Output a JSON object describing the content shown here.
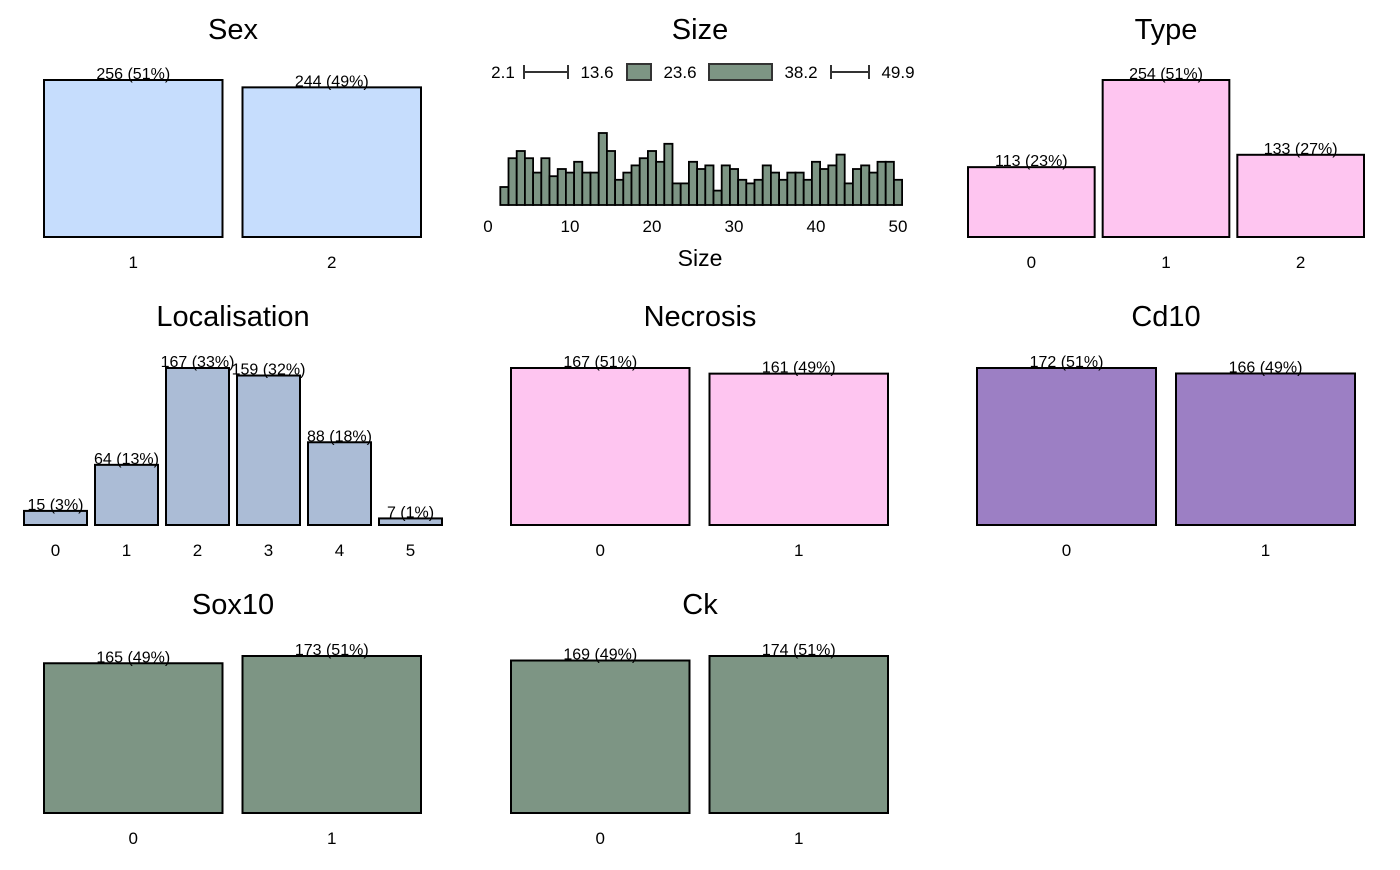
{
  "chart_data": [
    {
      "type": "bar",
      "title": "Sex",
      "categories": [
        "1",
        "2"
      ],
      "values": [
        256,
        244
      ],
      "labels": [
        "256 (51%)",
        "244 (49%)"
      ],
      "color": "#c6ddfd"
    },
    {
      "type": "histogram",
      "title": "Size",
      "xlabel": "Size",
      "xlim": [
        0,
        50
      ],
      "xticks": [
        "0",
        "10",
        "20",
        "30",
        "40",
        "50"
      ],
      "bin_start": 1.5,
      "bin_width": 1,
      "counts": [
        5,
        13,
        15,
        13,
        9,
        13,
        8,
        10,
        9,
        12,
        9,
        9,
        20,
        15,
        7,
        9,
        11,
        13,
        15,
        12,
        17,
        6,
        6,
        12,
        10,
        11,
        4,
        11,
        10,
        7,
        6,
        7,
        11,
        9,
        7,
        9,
        9,
        7,
        12,
        10,
        11,
        14,
        6,
        10,
        11,
        9,
        12,
        12,
        7
      ],
      "summary": {
        "min": "2.1",
        "q1": "13.6",
        "median": "23.6",
        "q3": "38.2",
        "max": "49.9"
      },
      "color": "#7d9584"
    },
    {
      "type": "bar",
      "title": "Type",
      "categories": [
        "0",
        "1",
        "2"
      ],
      "values": [
        113,
        254,
        133
      ],
      "labels": [
        "113 (23%)",
        "254 (51%)",
        "133 (27%)"
      ],
      "color": "#fec5f0"
    },
    {
      "type": "bar",
      "title": "Localisation",
      "categories": [
        "0",
        "1",
        "2",
        "3",
        "4",
        "5"
      ],
      "values": [
        15,
        64,
        167,
        159,
        88,
        7
      ],
      "labels": [
        "15 (3%)",
        "64 (13%)",
        "167 (33%)",
        "159 (32%)",
        "88 (18%)",
        "7 (1%)"
      ],
      "color": "#abbcd6"
    },
    {
      "type": "bar",
      "title": "Necrosis",
      "categories": [
        "0",
        "1"
      ],
      "values": [
        167,
        161
      ],
      "labels": [
        "167 (51%)",
        "161 (49%)"
      ],
      "color": "#fec5f0"
    },
    {
      "type": "bar",
      "title": "Cd10",
      "categories": [
        "0",
        "1"
      ],
      "values": [
        172,
        166
      ],
      "labels": [
        "172 (51%)",
        "166 (49%)"
      ],
      "color": "#9c7fc4"
    },
    {
      "type": "bar",
      "title": "Sox10",
      "categories": [
        "0",
        "1"
      ],
      "values": [
        165,
        173
      ],
      "labels": [
        "165 (49%)",
        "173 (51%)"
      ],
      "color": "#7d9584"
    },
    {
      "type": "bar",
      "title": "Ck",
      "categories": [
        "0",
        "1"
      ],
      "values": [
        169,
        174
      ],
      "labels": [
        "169 (49%)",
        "174 (51%)"
      ],
      "color": "#7d9584"
    }
  ]
}
